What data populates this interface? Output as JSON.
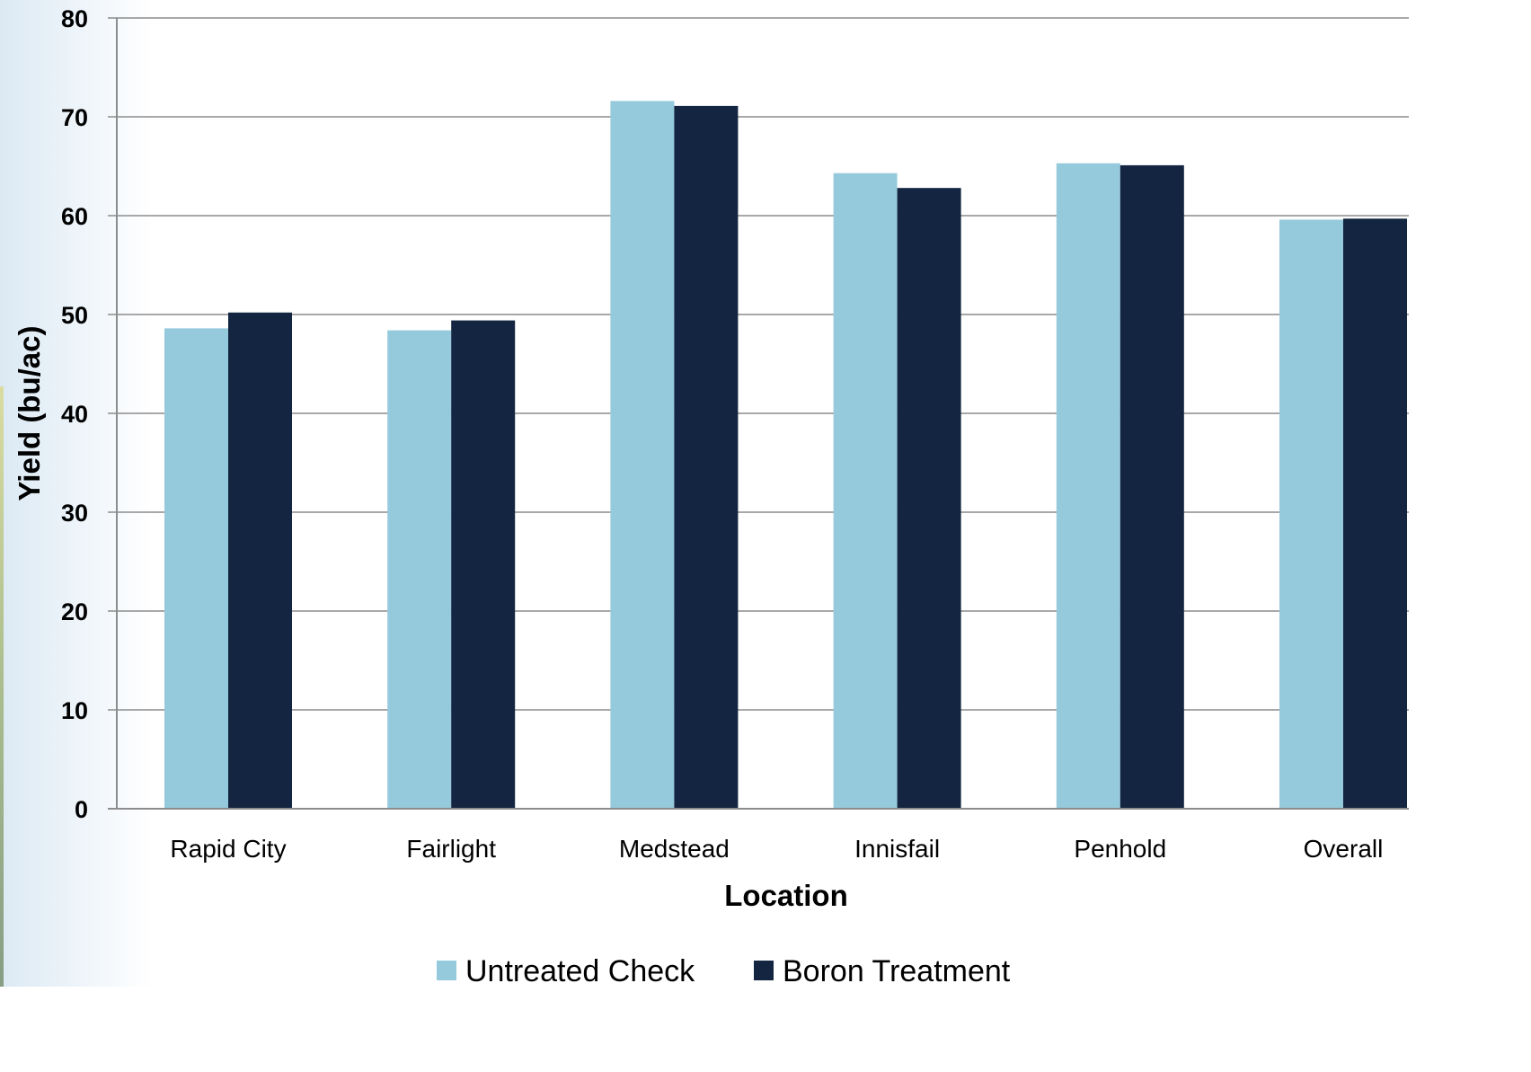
{
  "chart_data": {
    "type": "bar",
    "xlabel": "Location",
    "ylabel": "Yield (bu/ac)",
    "ylim": [
      0,
      80
    ],
    "yticks": [
      0,
      10,
      20,
      30,
      40,
      50,
      60,
      70,
      80
    ],
    "grid": true,
    "legend_position": "bottom",
    "categories": [
      "Rapid City",
      "Fairlight",
      "Medstead",
      "Innisfail",
      "Penhold",
      "Overall"
    ],
    "series": [
      {
        "name": "Untreated Check",
        "color": "#95cadc",
        "values": [
          48.6,
          48.4,
          71.6,
          64.3,
          65.3,
          59.6
        ]
      },
      {
        "name": "Boron Treatment",
        "color": "#132540",
        "values": [
          50.2,
          49.4,
          71.1,
          62.8,
          65.1,
          59.7
        ]
      }
    ]
  }
}
